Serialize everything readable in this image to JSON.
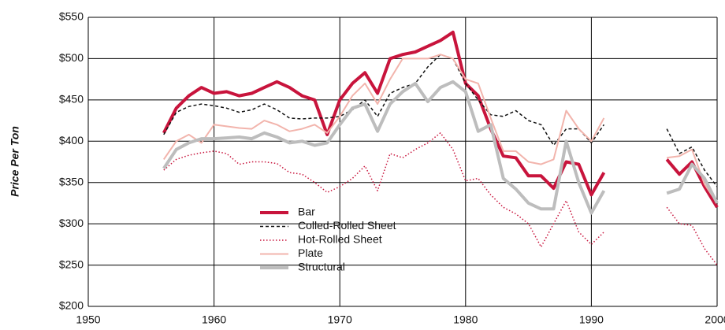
{
  "chart_data": {
    "type": "line",
    "ylabel": "Price Per Ton",
    "x": [
      1956,
      1957,
      1958,
      1959,
      1960,
      1961,
      1962,
      1963,
      1964,
      1965,
      1966,
      1967,
      1968,
      1969,
      1970,
      1971,
      1972,
      1973,
      1974,
      1975,
      1976,
      1977,
      1978,
      1979,
      1980,
      1981,
      1982,
      1983,
      1984,
      1985,
      1986,
      1987,
      1988,
      1989,
      1990,
      1991,
      1992,
      1993,
      1994,
      1995,
      1996,
      1997,
      1998,
      1999,
      2000
    ],
    "series": [
      {
        "name": "Bar",
        "color": "#c8143c",
        "style": "solid",
        "width": 4,
        "values": [
          410,
          440,
          455,
          465,
          458,
          460,
          455,
          458,
          465,
          472,
          465,
          455,
          450,
          408,
          450,
          470,
          483,
          458,
          500,
          505,
          508,
          515,
          522,
          532,
          470,
          455,
          415,
          382,
          380,
          358,
          358,
          343,
          375,
          372,
          335,
          362,
          null,
          null,
          null,
          null,
          378,
          360,
          375,
          345,
          320
        ]
      },
      {
        "name": "Colled-Rolled Sheet",
        "color": "#111111",
        "style": "dashed",
        "width": 1.5,
        "values": [
          408,
          435,
          442,
          445,
          443,
          440,
          435,
          438,
          445,
          438,
          428,
          427,
          428,
          428,
          430,
          438,
          450,
          430,
          458,
          465,
          470,
          490,
          505,
          500,
          470,
          450,
          432,
          430,
          437,
          425,
          420,
          395,
          415,
          415,
          398,
          420,
          null,
          null,
          null,
          null,
          415,
          385,
          393,
          365,
          345
        ]
      },
      {
        "name": "Hot-Rolled Sheet",
        "color": "#c8143c",
        "style": "dotted",
        "width": 1.5,
        "values": [
          365,
          378,
          383,
          386,
          388,
          385,
          372,
          375,
          375,
          373,
          362,
          360,
          350,
          338,
          345,
          355,
          370,
          340,
          385,
          380,
          390,
          398,
          410,
          390,
          352,
          355,
          335,
          320,
          312,
          300,
          272,
          300,
          328,
          290,
          275,
          290,
          null,
          null,
          null,
          null,
          320,
          300,
          298,
          270,
          250
        ]
      },
      {
        "name": "Plate",
        "color": "#f2b4ac",
        "style": "solid",
        "width": 2,
        "values": [
          378,
          400,
          408,
          398,
          420,
          418,
          416,
          415,
          425,
          420,
          412,
          415,
          420,
          410,
          430,
          455,
          470,
          445,
          475,
          500,
          500,
          500,
          505,
          500,
          475,
          470,
          428,
          388,
          388,
          375,
          372,
          378,
          437,
          415,
          400,
          428,
          null,
          null,
          null,
          null,
          380,
          382,
          390,
          348,
          325
        ]
      },
      {
        "name": "Structural",
        "color": "#bdbdbd",
        "style": "solid",
        "width": 4,
        "values": [
          367,
          390,
          398,
          403,
          403,
          404,
          405,
          403,
          410,
          405,
          398,
          400,
          395,
          398,
          420,
          440,
          445,
          412,
          445,
          460,
          470,
          448,
          465,
          472,
          460,
          412,
          420,
          355,
          342,
          325,
          318,
          318,
          400,
          350,
          313,
          340,
          null,
          null,
          null,
          null,
          337,
          342,
          372,
          355,
          325
        ]
      }
    ],
    "xlim": [
      1950,
      2000
    ],
    "xticks": [
      1950,
      1960,
      1970,
      1980,
      1990,
      2000
    ],
    "ylim": [
      200,
      550
    ],
    "yticks": [
      {
        "value": 200,
        "label": "$200"
      },
      {
        "value": 250,
        "label": "$250"
      },
      {
        "value": 300,
        "label": "$300"
      },
      {
        "value": 350,
        "label": "$350"
      },
      {
        "value": 400,
        "label": "$400"
      },
      {
        "value": 450,
        "label": "$450"
      },
      {
        "value": 500,
        "label": "$500"
      },
      {
        "value": 550,
        "label": "$550"
      }
    ],
    "grid": true
  }
}
